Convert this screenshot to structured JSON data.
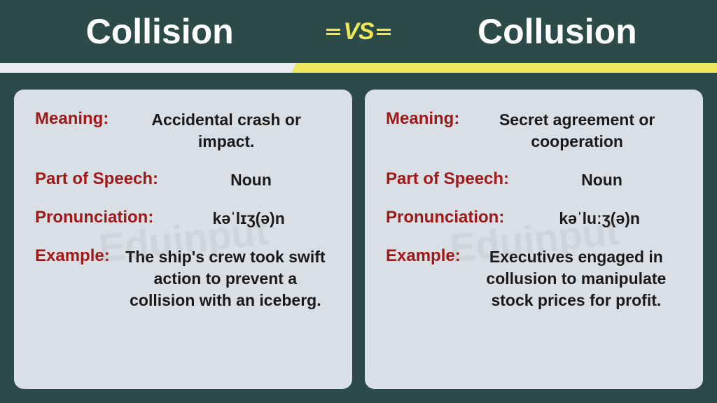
{
  "header": {
    "left_word": "Collision",
    "right_word": "Collusion",
    "vs_text": "VS"
  },
  "labels": {
    "meaning": "Meaning:",
    "part_of_speech": "Part of Speech:",
    "pronunciation": "Pronunciation:",
    "example": "Example:"
  },
  "left_card": {
    "meaning": "Accidental crash or impact.",
    "part_of_speech": "Noun",
    "pronunciation": "kəˈlɪʒ(ə)n",
    "example": "The ship's crew took swift action to prevent a collision with an iceberg."
  },
  "right_card": {
    "meaning": "Secret agreement or cooperation",
    "part_of_speech": "Noun",
    "pronunciation": "kəˈluːʒ(ə)n",
    "example": "Executives engaged in collusion to manipulate stock prices for profit."
  },
  "watermark_text": "Eduinput",
  "colors": {
    "background": "#2c4a47",
    "card_bg": "#d8e0e5",
    "label_color": "#a01818",
    "value_color": "#1a1a1a",
    "header_text": "#ffffff",
    "accent_yellow": "#ede85a",
    "divider_white": "#e8eef0"
  }
}
